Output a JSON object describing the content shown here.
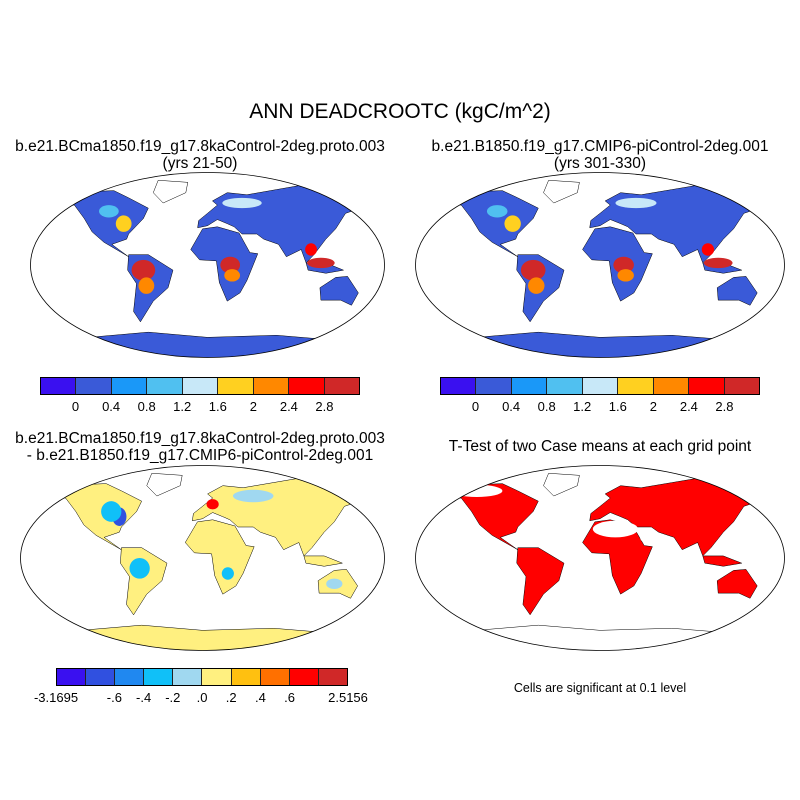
{
  "title": "ANN DEADCROOTC (kgC/m^2)",
  "panels": {
    "top_left": {
      "title_line1": "b.e21.BCma1850.f19_g17.8kaControl-2deg.proto.003",
      "title_line2": "(yrs 21-50)"
    },
    "top_right": {
      "title_line1": "b.e21.B1850.f19_g17.CMIP6-piControl-2deg.001",
      "title_line2": "(yrs 301-330)"
    },
    "bottom_left": {
      "title_line1": "b.e21.BCma1850.f19_g17.8kaControl-2deg.proto.003",
      "title_line2": "- b.e21.B1850.f19_g17.CMIP6-piControl-2deg.001"
    },
    "bottom_right": {
      "title_line1": "T-Test of two Case means at each grid point",
      "note": "Cells are significant at 0.1 level",
      "significant_color": "#ff0000"
    }
  },
  "colorbar_main": {
    "colors": [
      "#3a10f0",
      "#3a5ad8",
      "#1a98f8",
      "#50c0f0",
      "#c8e8f8",
      "#ffd020",
      "#ff8800",
      "#ff0000",
      "#d02828"
    ],
    "labels": [
      "0",
      "0.4",
      "0.8",
      "1.2",
      "1.6",
      "2",
      "2.4",
      "2.8"
    ]
  },
  "colorbar_diff": {
    "colors": [
      "#3a10f0",
      "#3050e0",
      "#2088f0",
      "#10c0f8",
      "#a0d8f0",
      "#fff080",
      "#ffc010",
      "#ff7000",
      "#ff0000",
      "#d02828"
    ],
    "labels": [
      "-3.1695",
      "",
      "-.6",
      "-.4",
      "-.2",
      ".0",
      ".2",
      ".4",
      ".6",
      "",
      "2.5156"
    ]
  }
}
